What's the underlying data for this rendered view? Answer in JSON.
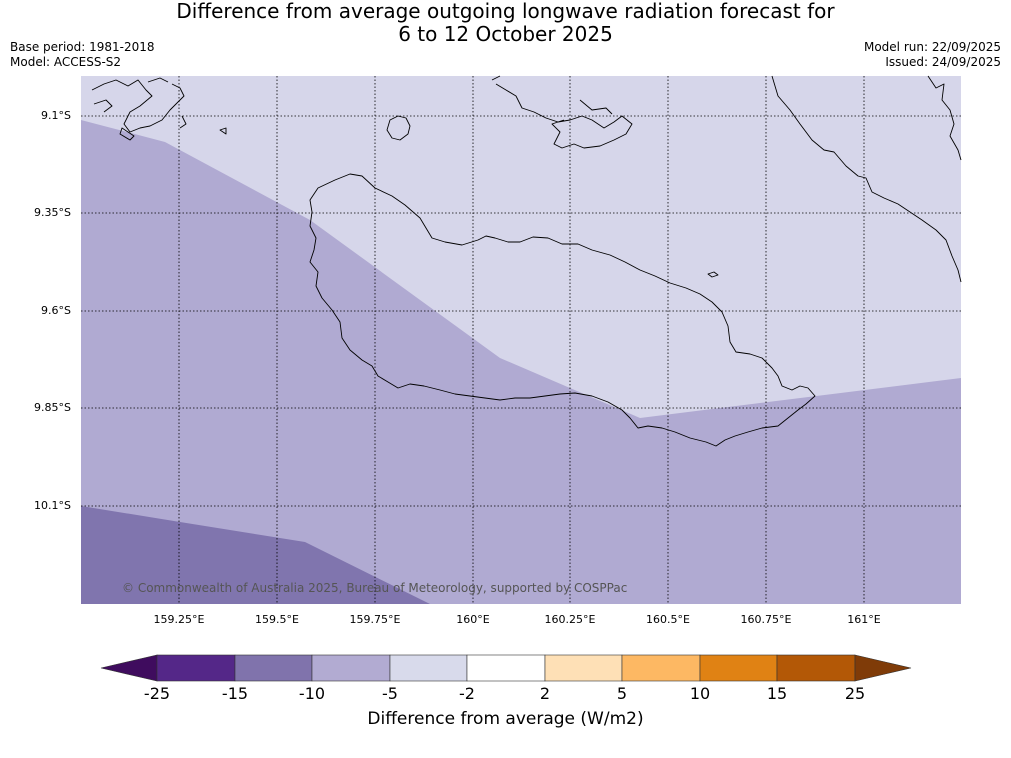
{
  "title": {
    "line1": "Difference from average outgoing longwave radiation forecast for",
    "line2": "6 to 12 October 2025"
  },
  "meta": {
    "base_period": "Base period: 1981-2018",
    "model": "Model: ACCESS-S2",
    "model_run": "Model run: 22/09/2025",
    "issued": "Issued: 24/09/2025"
  },
  "map": {
    "lat_labels": [
      "9.1°S",
      "9.35°S",
      "9.6°S",
      "9.85°S",
      "10.1°S"
    ],
    "lon_labels": [
      "159.25°E",
      "159.5°E",
      "159.75°E",
      "160°E",
      "160.25°E",
      "160.5°E",
      "160.75°E",
      "161°E"
    ],
    "copyright": "© Commonwealth of Australia 2025, Bureau of Meteorology, supported by COSPPac",
    "bin_colors": {
      "light": "#d6d6ea",
      "medium": "#b0aad2",
      "dark": "#8075ae"
    }
  },
  "colorbar": {
    "title": "Difference from average (W/m2)",
    "ticks": [
      "-25",
      "-15",
      "-10",
      "-5",
      "-2",
      "2",
      "5",
      "10",
      "15",
      "25"
    ],
    "under_color": "#3f0c5e",
    "over_color": "#7f3b08",
    "colors": [
      "#542788",
      "#8073ac",
      "#b2abd2",
      "#d8daeb",
      "#ffffff",
      "#fee0b6",
      "#fdb863",
      "#e08214",
      "#b35806"
    ]
  }
}
